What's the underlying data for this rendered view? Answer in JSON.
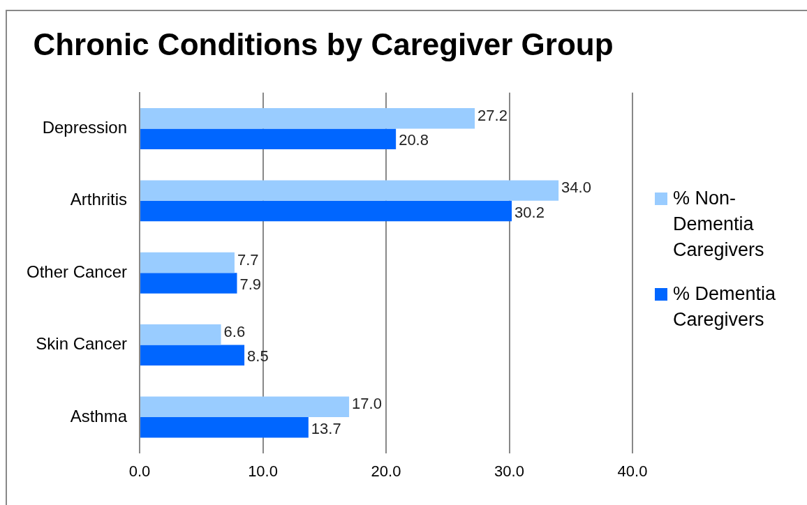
{
  "chart_data": {
    "type": "bar",
    "orientation": "horizontal",
    "title": "Chronic Conditions by Caregiver Group",
    "categories": [
      "Depression",
      "Arthritis",
      "Other Cancer",
      "Skin Cancer",
      "Asthma"
    ],
    "series": [
      {
        "name": "% Non-Dementia Caregivers",
        "color": "#99ccff",
        "values": [
          27.2,
          34.0,
          7.7,
          6.6,
          17.0
        ],
        "value_labels": [
          "27.2",
          "34.0",
          "7.7",
          "6.6",
          "17.0"
        ]
      },
      {
        "name": "% Dementia Caregivers",
        "color": "#0066ff",
        "values": [
          20.8,
          30.2,
          7.9,
          8.5,
          13.7
        ],
        "value_labels": [
          "20.8",
          "30.2",
          "7.9",
          "8.5",
          "13.7"
        ]
      }
    ],
    "xlim": [
      0,
      40
    ],
    "xticks": [
      {
        "value": 0,
        "label": "0.0"
      },
      {
        "value": 10,
        "label": "10.0"
      },
      {
        "value": 20,
        "label": "20.0"
      },
      {
        "value": 30,
        "label": "30.0"
      },
      {
        "value": 40,
        "label": "40.0"
      }
    ],
    "grid": "x",
    "legend": "right"
  }
}
